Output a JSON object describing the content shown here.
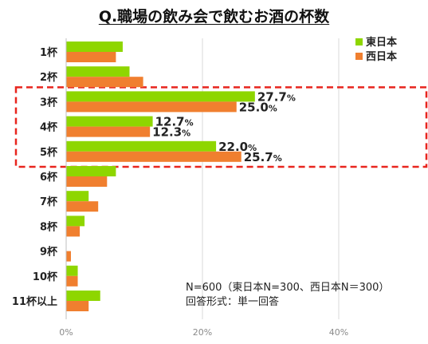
{
  "chart_data": {
    "type": "bar",
    "orientation": "horizontal",
    "title": "Q.職場の飲み会で飲むお酒の杯数",
    "categories": [
      "1杯",
      "2杯",
      "3杯",
      "4杯",
      "5杯",
      "6杯",
      "7杯",
      "8杯",
      "9杯",
      "10杯",
      "11杯以上"
    ],
    "series": [
      {
        "name": "東日本",
        "color": "#8ED600",
        "values": [
          8.3,
          9.3,
          27.7,
          12.7,
          22.0,
          7.3,
          3.3,
          2.7,
          0.0,
          1.7,
          5.0
        ]
      },
      {
        "name": "西日本",
        "color": "#F07F2F",
        "values": [
          7.3,
          11.3,
          25.0,
          12.3,
          25.7,
          6.0,
          4.7,
          2.0,
          0.7,
          1.7,
          3.3
        ]
      }
    ],
    "data_labels": [
      {
        "category": "3杯",
        "series": "東日本",
        "value": "27.7",
        "unit": "%"
      },
      {
        "category": "3杯",
        "series": "西日本",
        "value": "25.0",
        "unit": "%"
      },
      {
        "category": "4杯",
        "series": "東日本",
        "value": "12.7",
        "unit": "%"
      },
      {
        "category": "4杯",
        "series": "西日本",
        "value": "12.3",
        "unit": "%"
      },
      {
        "category": "5杯",
        "series": "東日本",
        "value": "22.0",
        "unit": "%"
      },
      {
        "category": "5杯",
        "series": "西日本",
        "value": "25.7",
        "unit": "%"
      }
    ],
    "x_ticks": [
      "0%",
      "20%",
      "40%"
    ],
    "xlim": [
      0,
      50
    ],
    "grid": "vertical",
    "legend": "top-right",
    "highlight": {
      "categories": [
        "3杯",
        "4杯",
        "5杯"
      ],
      "color": "#E8251E",
      "style": "dashed"
    },
    "notes": [
      "N=600（東日本N=300、西日本N＝300）",
      "回答形式：単一回答"
    ]
  }
}
